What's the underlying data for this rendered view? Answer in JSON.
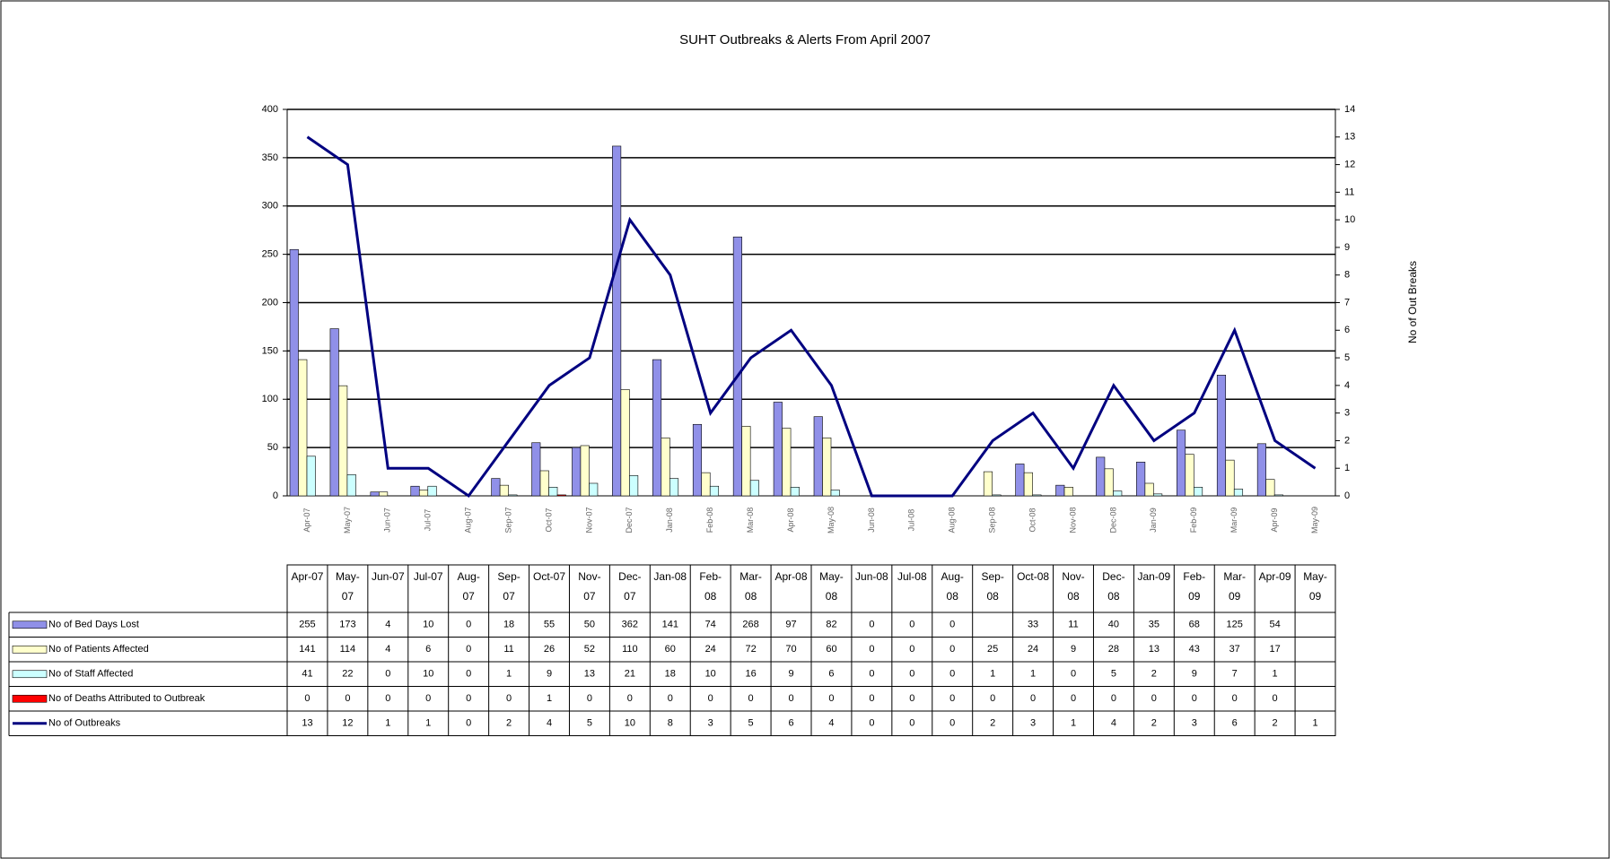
{
  "chart_data": {
    "type": "bar",
    "title": "SUHT Outbreaks & Alerts From April 2007",
    "y2label": "No of Out Breaks",
    "categories": [
      "Apr-07",
      "May-07",
      "Jun-07",
      "Jul-07",
      "Aug-07",
      "Sep-07",
      "Oct-07",
      "Nov-07",
      "Dec-07",
      "Jan-08",
      "Feb-08",
      "Mar-08",
      "Apr-08",
      "May-08",
      "Jun-08",
      "Jul-08",
      "Aug-08",
      "Sep-08",
      "Oct-08",
      "Nov-08",
      "Dec-08",
      "Jan-09",
      "Feb-09",
      "Mar-09",
      "Apr-09",
      "May-09"
    ],
    "series": [
      {
        "name": "No of Bed Days Lost",
        "color": "#9090e8",
        "values": [
          255,
          173,
          4,
          10,
          0,
          18,
          55,
          50,
          362,
          141,
          74,
          268,
          97,
          82,
          0,
          0,
          0,
          null,
          33,
          11,
          40,
          35,
          68,
          125,
          54,
          null
        ]
      },
      {
        "name": "No of Patients Affected",
        "color": "#ffffcc",
        "values": [
          141,
          114,
          4,
          6,
          0,
          11,
          26,
          52,
          110,
          60,
          24,
          72,
          70,
          60,
          0,
          0,
          0,
          25,
          24,
          9,
          28,
          13,
          43,
          37,
          17,
          null
        ]
      },
      {
        "name": "No of Staff Affected",
        "color": "#ccffff",
        "values": [
          41,
          22,
          0,
          10,
          0,
          1,
          9,
          13,
          21,
          18,
          10,
          16,
          9,
          6,
          0,
          0,
          0,
          1,
          1,
          0,
          5,
          2,
          9,
          7,
          1,
          null
        ]
      },
      {
        "name": "No of Deaths Attributed to Outbreak",
        "color": "#ff0000",
        "values": [
          0,
          0,
          0,
          0,
          0,
          0,
          1,
          0,
          0,
          0,
          0,
          0,
          0,
          0,
          0,
          0,
          0,
          0,
          0,
          0,
          0,
          0,
          0,
          0,
          0,
          null
        ]
      },
      {
        "name": "No of Outbreaks",
        "color": "#000080",
        "type": "line",
        "axis": "y2",
        "values": [
          13,
          12,
          1,
          1,
          0,
          2,
          4,
          5,
          10,
          8,
          3,
          5,
          6,
          4,
          0,
          0,
          0,
          2,
          3,
          1,
          4,
          2,
          3,
          6,
          2,
          1
        ]
      }
    ],
    "ylim": [
      0,
      400
    ],
    "yticks": [
      0,
      50,
      100,
      150,
      200,
      250,
      300,
      350,
      400
    ],
    "y2lim": [
      0,
      14
    ],
    "y2ticks": [
      0,
      1,
      2,
      3,
      4,
      5,
      6,
      7,
      8,
      9,
      10,
      11,
      12,
      13,
      14
    ],
    "grid": true
  }
}
